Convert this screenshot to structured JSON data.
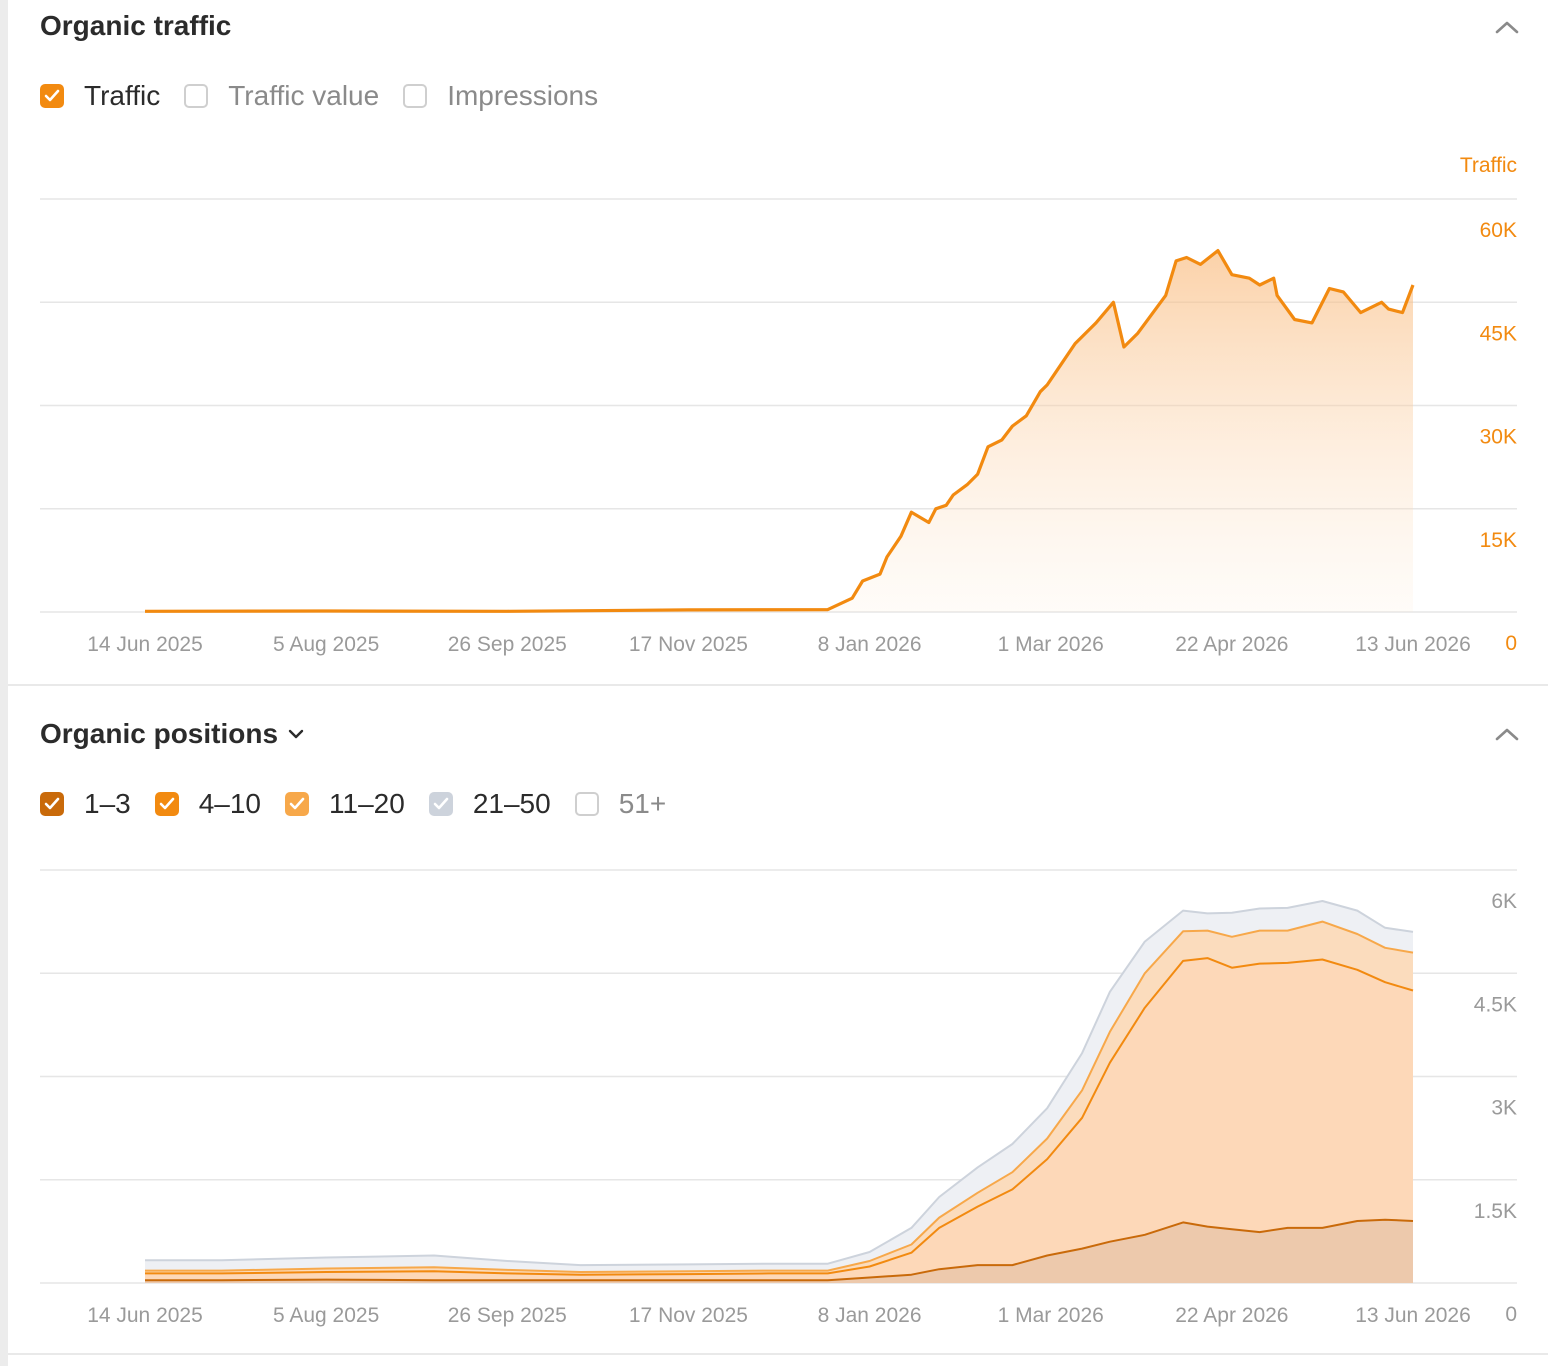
{
  "colors": {
    "traffic": "#f28a10",
    "pos_1_3": "#c96a0a",
    "pos_4_10": "#f28a10",
    "pos_11_20": "#f7a84a",
    "pos_21_50": "#cdd3dc",
    "grid": "#e6e6e6",
    "tick": "#9a9a9a"
  },
  "traffic_panel": {
    "title": "Organic traffic",
    "collapse_icon": "chevron-up-icon",
    "checkboxes": [
      {
        "label": "Traffic",
        "checked": true,
        "color": "#f28a10"
      },
      {
        "label": "Traffic value",
        "checked": false
      },
      {
        "label": "Impressions",
        "checked": false
      }
    ]
  },
  "positions_panel": {
    "title": "Organic positions",
    "title_icon": "chevron-down-icon",
    "collapse_icon": "chevron-up-icon",
    "checkboxes": [
      {
        "label": "1–3",
        "checked": true,
        "color": "#c96a0a"
      },
      {
        "label": "4–10",
        "checked": true,
        "color": "#f28a10"
      },
      {
        "label": "11–20",
        "checked": true,
        "color": "#f7a84a"
      },
      {
        "label": "21–50",
        "checked": true,
        "color": "#cdd3dc"
      },
      {
        "label": "51+",
        "checked": false
      }
    ]
  },
  "chart_data": [
    {
      "type": "area",
      "ylabel": "Traffic",
      "ylim": [
        0,
        60000
      ],
      "yticks": [
        0,
        15000,
        30000,
        45000,
        60000
      ],
      "ytick_labels": [
        "0",
        "15K",
        "30K",
        "45K",
        "60K"
      ],
      "xticks": [
        "14 Jun 2025",
        "5 Aug 2025",
        "26 Sep 2025",
        "17 Nov 2025",
        "8 Jan 2026",
        "1 Mar 2026",
        "22 Apr 2026",
        "13 Jun 2026"
      ],
      "x_range": [
        "2025-06-14",
        "2026-06-13"
      ],
      "grid": true,
      "series": [
        {
          "name": "Traffic",
          "x": [
            "2025-06-14",
            "2025-08-05",
            "2025-09-26",
            "2025-11-17",
            "2025-12-27",
            "2026-01-03",
            "2026-01-06",
            "2026-01-11",
            "2026-01-13",
            "2026-01-17",
            "2026-01-20",
            "2026-01-25",
            "2026-01-27",
            "2026-01-30",
            "2026-02-01",
            "2026-02-05",
            "2026-02-08",
            "2026-02-11",
            "2026-02-15",
            "2026-02-18",
            "2026-02-22",
            "2026-02-26",
            "2026-02-28",
            "2026-03-04",
            "2026-03-08",
            "2026-03-14",
            "2026-03-19",
            "2026-03-22",
            "2026-03-26",
            "2026-04-03",
            "2026-04-06",
            "2026-04-09",
            "2026-04-13",
            "2026-04-18",
            "2026-04-22",
            "2026-04-27",
            "2026-04-30",
            "2026-05-04",
            "2026-05-05",
            "2026-05-10",
            "2026-05-15",
            "2026-05-20",
            "2026-05-24",
            "2026-05-29",
            "2026-06-04",
            "2026-06-06",
            "2026-06-10",
            "2026-06-13"
          ],
          "y": [
            100,
            150,
            100,
            300,
            350,
            2000,
            4500,
            5500,
            8000,
            11000,
            14500,
            13000,
            15000,
            15500,
            17000,
            18500,
            20000,
            24000,
            25000,
            27000,
            28500,
            32000,
            33000,
            36000,
            39000,
            42000,
            45000,
            38500,
            40500,
            46000,
            51000,
            51500,
            50500,
            52500,
            49000,
            48500,
            47500,
            48500,
            46000,
            42500,
            42000,
            47000,
            46500,
            43500,
            45000,
            44000,
            43500,
            47500
          ]
        }
      ]
    },
    {
      "type": "area",
      "stacked": true,
      "ylim": [
        0,
        6000
      ],
      "yticks": [
        0,
        1500,
        3000,
        4500,
        6000
      ],
      "ytick_labels": [
        "0",
        "1.5K",
        "3K",
        "4.5K",
        "6K"
      ],
      "xticks": [
        "14 Jun 2025",
        "5 Aug 2025",
        "26 Sep 2025",
        "17 Nov 2025",
        "8 Jan 2026",
        "1 Mar 2026",
        "22 Apr 2026",
        "13 Jun 2026"
      ],
      "x_range": [
        "2025-06-14",
        "2026-06-13"
      ],
      "grid": true,
      "x": [
        "2025-06-14",
        "2025-07-06",
        "2025-08-05",
        "2025-09-05",
        "2025-09-26",
        "2025-10-17",
        "2025-11-17",
        "2025-12-10",
        "2025-12-27",
        "2026-01-08",
        "2026-01-20",
        "2026-01-28",
        "2026-02-08",
        "2026-02-18",
        "2026-02-28",
        "2026-03-10",
        "2026-03-18",
        "2026-03-28",
        "2026-04-08",
        "2026-04-15",
        "2026-04-22",
        "2026-04-30",
        "2026-05-08",
        "2026-05-18",
        "2026-05-28",
        "2026-06-05",
        "2026-06-13"
      ],
      "series": [
        {
          "name": "1–3",
          "values": [
            40,
            40,
            50,
            40,
            40,
            40,
            40,
            40,
            40,
            80,
            120,
            200,
            260,
            260,
            400,
            500,
            600,
            700,
            880,
            820,
            780,
            740,
            800,
            800,
            900,
            920,
            900
          ]
        },
        {
          "name": "4–10",
          "values": [
            100,
            100,
            110,
            130,
            100,
            80,
            90,
            100,
            100,
            160,
            320,
            600,
            850,
            1100,
            1400,
            1900,
            2600,
            3300,
            3800,
            3900,
            3800,
            3900,
            3850,
            3900,
            3650,
            3450,
            3350
          ]
        },
        {
          "name": "11–20",
          "values": [
            40,
            40,
            50,
            60,
            50,
            40,
            40,
            40,
            40,
            80,
            120,
            150,
            200,
            250,
            300,
            400,
            450,
            500,
            430,
            400,
            450,
            480,
            470,
            550,
            520,
            500,
            550
          ]
        },
        {
          "name": "21–50",
          "values": [
            150,
            150,
            160,
            170,
            130,
            100,
            100,
            100,
            100,
            130,
            240,
            300,
            370,
            410,
            440,
            540,
            580,
            460,
            300,
            250,
            350,
            320,
            330,
            300,
            340,
            290,
            300
          ]
        }
      ]
    }
  ]
}
